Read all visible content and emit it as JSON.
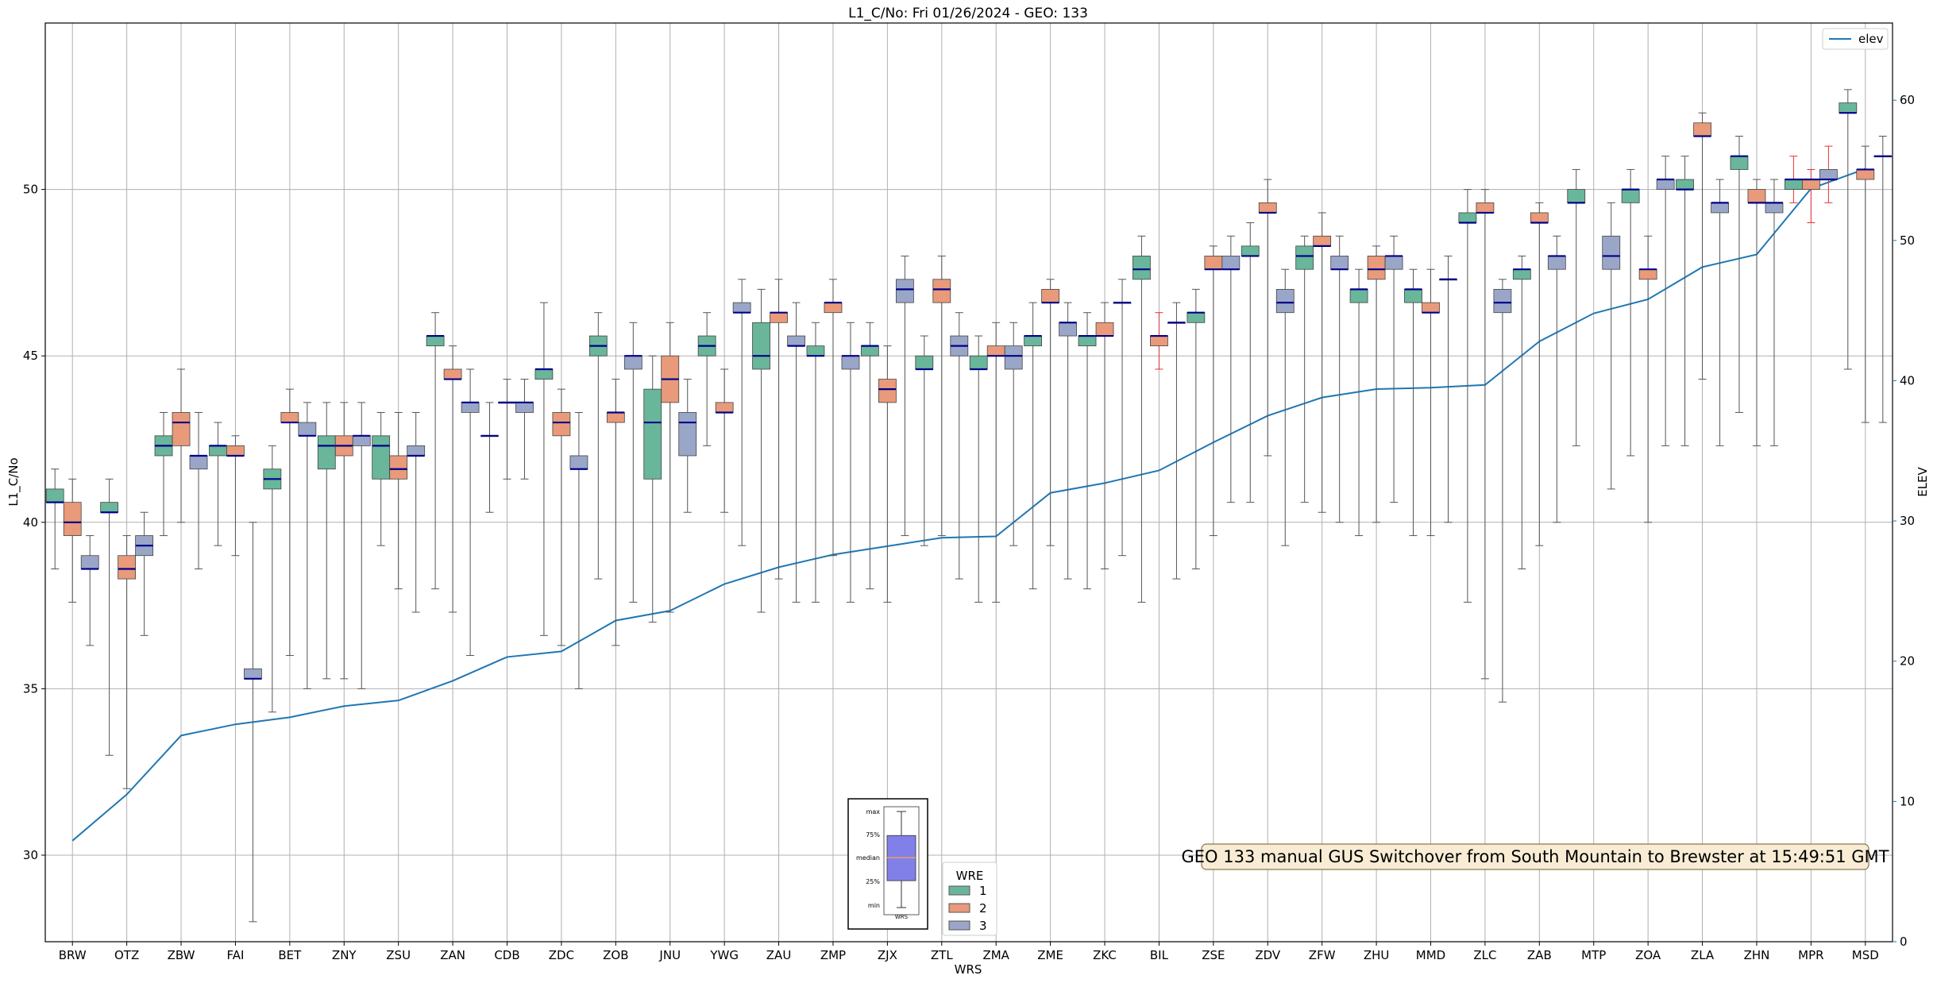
{
  "colors": {
    "wre1": "#69b69a",
    "wre2": "#e89a7a",
    "wre3": "#9aa6c8",
    "median": "#00008b",
    "elev": "#1f77b4",
    "grid": "#b0b0b0",
    "whisker": "#555555",
    "whisker_red": "#e83030",
    "annotation_bg": "#f8ecd4",
    "annotation_border": "#8a7650"
  },
  "chart_data": {
    "type": "box",
    "title": "L1_C/No: Fri 01/26/2024 - GEO: 133",
    "xlabel": "WRS",
    "ylabel": "L1_C/No",
    "y2label": "ELEV",
    "ylim": [
      27.4,
      55.0
    ],
    "y2lim": [
      0,
      65.5
    ],
    "yticks": [
      30,
      35,
      40,
      45,
      50
    ],
    "y2ticks": [
      0,
      10,
      20,
      30,
      40,
      50,
      60
    ],
    "grid": true,
    "categories": [
      "BRW",
      "OTZ",
      "ZBW",
      "FAI",
      "BET",
      "ZNY",
      "ZSU",
      "ZAN",
      "CDB",
      "ZDC",
      "ZOB",
      "JNU",
      "YWG",
      "ZAU",
      "ZMP",
      "ZJX",
      "ZTL",
      "ZMA",
      "ZME",
      "ZKC",
      "BIL",
      "ZSE",
      "ZDV",
      "ZFW",
      "ZHU",
      "MMD",
      "ZLC",
      "ZAB",
      "MTP",
      "ZOA",
      "ZLA",
      "ZHN",
      "MPR",
      "MSD"
    ],
    "boxes": [
      {
        "wrs": "BRW",
        "wre": 1,
        "min": 38.6,
        "q1": 40.6,
        "median": 40.6,
        "q3": 41.0,
        "max": 41.6
      },
      {
        "wrs": "BRW",
        "wre": 2,
        "min": 37.6,
        "q1": 39.6,
        "median": 40.0,
        "q3": 40.6,
        "max": 41.3
      },
      {
        "wrs": "BRW",
        "wre": 3,
        "min": 36.3,
        "q1": 38.6,
        "median": 38.6,
        "q3": 39.0,
        "max": 39.6
      },
      {
        "wrs": "OTZ",
        "wre": 1,
        "min": 33.0,
        "q1": 40.3,
        "median": 40.3,
        "q3": 40.6,
        "max": 41.3
      },
      {
        "wrs": "OTZ",
        "wre": 2,
        "min": 32.0,
        "q1": 38.3,
        "median": 38.6,
        "q3": 39.0,
        "max": 39.6
      },
      {
        "wrs": "OTZ",
        "wre": 3,
        "min": 36.6,
        "q1": 39.0,
        "median": 39.3,
        "q3": 39.6,
        "max": 40.3
      },
      {
        "wrs": "ZBW",
        "wre": 1,
        "min": 39.6,
        "q1": 42.0,
        "median": 42.3,
        "q3": 42.6,
        "max": 43.3
      },
      {
        "wrs": "ZBW",
        "wre": 2,
        "min": 40.0,
        "q1": 42.3,
        "median": 43.0,
        "q3": 43.3,
        "max": 44.6
      },
      {
        "wrs": "ZBW",
        "wre": 3,
        "min": 38.6,
        "q1": 41.6,
        "median": 42.0,
        "q3": 42.0,
        "max": 43.3
      },
      {
        "wrs": "FAI",
        "wre": 1,
        "min": 39.3,
        "q1": 42.0,
        "median": 42.3,
        "q3": 42.3,
        "max": 43.0
      },
      {
        "wrs": "FAI",
        "wre": 2,
        "min": 39.0,
        "q1": 42.0,
        "median": 42.0,
        "q3": 42.3,
        "max": 42.6
      },
      {
        "wrs": "FAI",
        "wre": 3,
        "min": 28.0,
        "q1": 35.3,
        "median": 35.3,
        "q3": 35.6,
        "max": 40.0
      },
      {
        "wrs": "BET",
        "wre": 1,
        "min": 34.3,
        "q1": 41.0,
        "median": 41.3,
        "q3": 41.6,
        "max": 42.3
      },
      {
        "wrs": "BET",
        "wre": 2,
        "min": 36.0,
        "q1": 43.0,
        "median": 43.0,
        "q3": 43.3,
        "max": 44.0
      },
      {
        "wrs": "BET",
        "wre": 3,
        "min": 35.0,
        "q1": 42.6,
        "median": 42.6,
        "q3": 43.0,
        "max": 43.6
      },
      {
        "wrs": "ZNY",
        "wre": 1,
        "min": 35.3,
        "q1": 41.6,
        "median": 42.3,
        "q3": 42.6,
        "max": 43.6
      },
      {
        "wrs": "ZNY",
        "wre": 2,
        "min": 35.3,
        "q1": 42.0,
        "median": 42.3,
        "q3": 42.6,
        "max": 43.6
      },
      {
        "wrs": "ZNY",
        "wre": 3,
        "min": 35.0,
        "q1": 42.3,
        "median": 42.6,
        "q3": 42.6,
        "max": 43.6
      },
      {
        "wrs": "ZSU",
        "wre": 1,
        "min": 39.3,
        "q1": 41.3,
        "median": 42.3,
        "q3": 42.6,
        "max": 43.3
      },
      {
        "wrs": "ZSU",
        "wre": 2,
        "min": 38.0,
        "q1": 41.3,
        "median": 41.6,
        "q3": 42.0,
        "max": 43.3
      },
      {
        "wrs": "ZSU",
        "wre": 3,
        "min": 37.3,
        "q1": 42.0,
        "median": 42.0,
        "q3": 42.3,
        "max": 43.3
      },
      {
        "wrs": "ZAN",
        "wre": 1,
        "min": 38.0,
        "q1": 45.3,
        "median": 45.6,
        "q3": 45.6,
        "max": 46.3
      },
      {
        "wrs": "ZAN",
        "wre": 2,
        "min": 37.3,
        "q1": 44.3,
        "median": 44.3,
        "q3": 44.6,
        "max": 45.3
      },
      {
        "wrs": "ZAN",
        "wre": 3,
        "min": 36.0,
        "q1": 43.3,
        "median": 43.6,
        "q3": 43.6,
        "max": 44.6
      },
      {
        "wrs": "CDB",
        "wre": 1,
        "min": 40.3,
        "q1": 42.6,
        "median": 42.6,
        "q3": 42.6,
        "max": 43.6
      },
      {
        "wrs": "CDB",
        "wre": 2,
        "min": 41.3,
        "q1": 43.6,
        "median": 43.6,
        "q3": 43.6,
        "max": 44.3
      },
      {
        "wrs": "CDB",
        "wre": 3,
        "min": 41.3,
        "q1": 43.3,
        "median": 43.6,
        "q3": 43.6,
        "max": 44.3
      },
      {
        "wrs": "ZDC",
        "wre": 1,
        "min": 36.6,
        "q1": 44.3,
        "median": 44.6,
        "q3": 44.6,
        "max": 46.6
      },
      {
        "wrs": "ZDC",
        "wre": 2,
        "min": 36.3,
        "q1": 42.6,
        "median": 43.0,
        "q3": 43.3,
        "max": 44.0
      },
      {
        "wrs": "ZDC",
        "wre": 3,
        "min": 35.0,
        "q1": 41.6,
        "median": 41.6,
        "q3": 42.0,
        "max": 43.3
      },
      {
        "wrs": "ZOB",
        "wre": 1,
        "min": 38.3,
        "q1": 45.0,
        "median": 45.3,
        "q3": 45.6,
        "max": 46.3
      },
      {
        "wrs": "ZOB",
        "wre": 2,
        "min": 36.3,
        "q1": 43.0,
        "median": 43.3,
        "q3": 43.3,
        "max": 44.3
      },
      {
        "wrs": "ZOB",
        "wre": 3,
        "min": 37.6,
        "q1": 44.6,
        "median": 45.0,
        "q3": 45.0,
        "max": 46.0
      },
      {
        "wrs": "JNU",
        "wre": 1,
        "min": 37.0,
        "q1": 41.3,
        "median": 43.0,
        "q3": 44.0,
        "max": 45.0
      },
      {
        "wrs": "JNU",
        "wre": 2,
        "min": 37.3,
        "q1": 43.6,
        "median": 44.3,
        "q3": 45.0,
        "max": 46.0
      },
      {
        "wrs": "JNU",
        "wre": 3,
        "min": 40.3,
        "q1": 42.0,
        "median": 43.0,
        "q3": 43.3,
        "max": 44.3
      },
      {
        "wrs": "YWG",
        "wre": 1,
        "min": 42.3,
        "q1": 45.0,
        "median": 45.3,
        "q3": 45.6,
        "max": 46.3
      },
      {
        "wrs": "YWG",
        "wre": 2,
        "min": 40.3,
        "q1": 43.3,
        "median": 43.3,
        "q3": 43.6,
        "max": 44.6
      },
      {
        "wrs": "YWG",
        "wre": 3,
        "min": 39.3,
        "q1": 46.3,
        "median": 46.3,
        "q3": 46.6,
        "max": 47.3
      },
      {
        "wrs": "ZAU",
        "wre": 1,
        "min": 37.3,
        "q1": 44.6,
        "median": 45.0,
        "q3": 46.0,
        "max": 47.0
      },
      {
        "wrs": "ZAU",
        "wre": 2,
        "min": 38.3,
        "q1": 46.0,
        "median": 46.3,
        "q3": 46.3,
        "max": 47.3
      },
      {
        "wrs": "ZAU",
        "wre": 3,
        "min": 37.6,
        "q1": 45.3,
        "median": 45.3,
        "q3": 45.6,
        "max": 46.6
      },
      {
        "wrs": "ZMP",
        "wre": 1,
        "min": 37.6,
        "q1": 45.0,
        "median": 45.0,
        "q3": 45.3,
        "max": 46.0
      },
      {
        "wrs": "ZMP",
        "wre": 2,
        "min": 39.0,
        "q1": 46.3,
        "median": 46.6,
        "q3": 46.6,
        "max": 47.3
      },
      {
        "wrs": "ZMP",
        "wre": 3,
        "min": 37.6,
        "q1": 44.6,
        "median": 45.0,
        "q3": 45.0,
        "max": 46.0
      },
      {
        "wrs": "ZJX",
        "wre": 1,
        "min": 38.0,
        "q1": 45.0,
        "median": 45.3,
        "q3": 45.3,
        "max": 46.0
      },
      {
        "wrs": "ZJX",
        "wre": 2,
        "min": 37.6,
        "q1": 43.6,
        "median": 44.0,
        "q3": 44.3,
        "max": 45.3
      },
      {
        "wrs": "ZJX",
        "wre": 3,
        "min": 39.6,
        "q1": 46.6,
        "median": 47.0,
        "q3": 47.3,
        "max": 48.0
      },
      {
        "wrs": "ZTL",
        "wre": 1,
        "min": 39.3,
        "q1": 44.6,
        "median": 44.6,
        "q3": 45.0,
        "max": 45.6
      },
      {
        "wrs": "ZTL",
        "wre": 2,
        "min": 39.6,
        "q1": 46.6,
        "median": 47.0,
        "q3": 47.3,
        "max": 48.0
      },
      {
        "wrs": "ZTL",
        "wre": 3,
        "min": 38.3,
        "q1": 45.0,
        "median": 45.3,
        "q3": 45.6,
        "max": 46.3
      },
      {
        "wrs": "ZMA",
        "wre": 1,
        "min": 37.6,
        "q1": 44.6,
        "median": 44.6,
        "q3": 45.0,
        "max": 45.6
      },
      {
        "wrs": "ZMA",
        "wre": 2,
        "min": 37.6,
        "q1": 45.0,
        "median": 45.0,
        "q3": 45.3,
        "max": 46.0
      },
      {
        "wrs": "ZMA",
        "wre": 3,
        "min": 39.3,
        "q1": 44.6,
        "median": 45.0,
        "q3": 45.3,
        "max": 46.0
      },
      {
        "wrs": "ZME",
        "wre": 1,
        "min": 38.0,
        "q1": 45.3,
        "median": 45.6,
        "q3": 45.6,
        "max": 46.6
      },
      {
        "wrs": "ZME",
        "wre": 2,
        "min": 39.3,
        "q1": 46.6,
        "median": 46.6,
        "q3": 47.0,
        "max": 47.3
      },
      {
        "wrs": "ZME",
        "wre": 3,
        "min": 38.3,
        "q1": 45.6,
        "median": 46.0,
        "q3": 46.0,
        "max": 46.6
      },
      {
        "wrs": "ZKC",
        "wre": 1,
        "min": 38.0,
        "q1": 45.3,
        "median": 45.6,
        "q3": 45.6,
        "max": 46.3
      },
      {
        "wrs": "ZKC",
        "wre": 2,
        "min": 38.6,
        "q1": 45.6,
        "median": 45.6,
        "q3": 46.0,
        "max": 46.6
      },
      {
        "wrs": "ZKC",
        "wre": 3,
        "min": 39.0,
        "q1": 46.6,
        "median": 46.6,
        "q3": 46.6,
        "max": 47.3
      },
      {
        "wrs": "BIL",
        "wre": 1,
        "min": 37.6,
        "q1": 47.3,
        "median": 47.6,
        "q3": 48.0,
        "max": 48.6
      },
      {
        "wrs": "BIL",
        "wre": 2,
        "min": 44.6,
        "q1": 45.3,
        "median": 45.6,
        "q3": 45.6,
        "max": 46.3,
        "red_whisker": true
      },
      {
        "wrs": "BIL",
        "wre": 3,
        "min": 38.3,
        "q1": 46.0,
        "median": 46.0,
        "q3": 46.0,
        "max": 46.6
      },
      {
        "wrs": "ZSE",
        "wre": 1,
        "min": 38.6,
        "q1": 46.0,
        "median": 46.3,
        "q3": 46.3,
        "max": 47.0
      },
      {
        "wrs": "ZSE",
        "wre": 2,
        "min": 39.6,
        "q1": 47.6,
        "median": 47.6,
        "q3": 48.0,
        "max": 48.3
      },
      {
        "wrs": "ZSE",
        "wre": 3,
        "min": 40.6,
        "q1": 47.6,
        "median": 47.6,
        "q3": 48.0,
        "max": 48.6
      },
      {
        "wrs": "ZDV",
        "wre": 1,
        "min": 40.6,
        "q1": 48.0,
        "median": 48.0,
        "q3": 48.3,
        "max": 49.0
      },
      {
        "wrs": "ZDV",
        "wre": 2,
        "min": 42.0,
        "q1": 49.3,
        "median": 49.3,
        "q3": 49.6,
        "max": 50.3
      },
      {
        "wrs": "ZDV",
        "wre": 3,
        "min": 39.3,
        "q1": 46.3,
        "median": 46.6,
        "q3": 47.0,
        "max": 47.6
      },
      {
        "wrs": "ZFW",
        "wre": 1,
        "min": 40.6,
        "q1": 47.6,
        "median": 48.0,
        "q3": 48.3,
        "max": 48.6
      },
      {
        "wrs": "ZFW",
        "wre": 2,
        "min": 40.3,
        "q1": 48.3,
        "median": 48.3,
        "q3": 48.6,
        "max": 49.3
      },
      {
        "wrs": "ZFW",
        "wre": 3,
        "min": 40.0,
        "q1": 47.6,
        "median": 47.6,
        "q3": 48.0,
        "max": 48.6
      },
      {
        "wrs": "ZHU",
        "wre": 1,
        "min": 39.6,
        "q1": 46.6,
        "median": 47.0,
        "q3": 47.0,
        "max": 47.6
      },
      {
        "wrs": "ZHU",
        "wre": 2,
        "min": 40.0,
        "q1": 47.3,
        "median": 47.6,
        "q3": 48.0,
        "max": 48.3
      },
      {
        "wrs": "ZHU",
        "wre": 3,
        "min": 40.6,
        "q1": 47.6,
        "median": 48.0,
        "q3": 48.0,
        "max": 48.6
      },
      {
        "wrs": "MMD",
        "wre": 1,
        "min": 39.6,
        "q1": 46.6,
        "median": 47.0,
        "q3": 47.0,
        "max": 47.6
      },
      {
        "wrs": "MMD",
        "wre": 2,
        "min": 39.6,
        "q1": 46.3,
        "median": 46.3,
        "q3": 46.6,
        "max": 47.6
      },
      {
        "wrs": "MMD",
        "wre": 3,
        "min": 40.0,
        "q1": 47.3,
        "median": 47.3,
        "q3": 47.3,
        "max": 48.0
      },
      {
        "wrs": "ZLC",
        "wre": 1,
        "min": 37.6,
        "q1": 49.0,
        "median": 49.0,
        "q3": 49.3,
        "max": 50.0
      },
      {
        "wrs": "ZLC",
        "wre": 2,
        "min": 35.3,
        "q1": 49.3,
        "median": 49.3,
        "q3": 49.6,
        "max": 50.0
      },
      {
        "wrs": "ZLC",
        "wre": 3,
        "min": 34.6,
        "q1": 46.3,
        "median": 46.6,
        "q3": 47.0,
        "max": 47.3
      },
      {
        "wrs": "ZAB",
        "wre": 1,
        "min": 38.6,
        "q1": 47.3,
        "median": 47.6,
        "q3": 47.6,
        "max": 48.0
      },
      {
        "wrs": "ZAB",
        "wre": 2,
        "min": 39.3,
        "q1": 49.0,
        "median": 49.0,
        "q3": 49.3,
        "max": 49.6
      },
      {
        "wrs": "ZAB",
        "wre": 3,
        "min": 40.0,
        "q1": 47.6,
        "median": 48.0,
        "q3": 48.0,
        "max": 48.6
      },
      {
        "wrs": "MTP",
        "wre": 1,
        "min": 42.3,
        "q1": 49.6,
        "median": 49.6,
        "q3": 50.0,
        "max": 50.6
      },
      {
        "wrs": "MTP",
        "wre": 3,
        "min": 41.0,
        "q1": 47.6,
        "median": 48.0,
        "q3": 48.6,
        "max": 49.6
      },
      {
        "wrs": "ZOA",
        "wre": 1,
        "min": 42.0,
        "q1": 49.6,
        "median": 50.0,
        "q3": 50.0,
        "max": 50.6
      },
      {
        "wrs": "ZOA",
        "wre": 2,
        "min": 40.0,
        "q1": 47.3,
        "median": 47.6,
        "q3": 47.6,
        "max": 48.6
      },
      {
        "wrs": "ZOA",
        "wre": 3,
        "min": 42.3,
        "q1": 50.0,
        "median": 50.3,
        "q3": 50.3,
        "max": 51.0
      },
      {
        "wrs": "ZLA",
        "wre": 1,
        "min": 42.3,
        "q1": 50.0,
        "median": 50.0,
        "q3": 50.3,
        "max": 51.0
      },
      {
        "wrs": "ZLA",
        "wre": 2,
        "min": 44.3,
        "q1": 51.6,
        "median": 51.6,
        "q3": 52.0,
        "max": 52.3
      },
      {
        "wrs": "ZLA",
        "wre": 3,
        "min": 42.3,
        "q1": 49.3,
        "median": 49.6,
        "q3": 49.6,
        "max": 50.3
      },
      {
        "wrs": "ZHN",
        "wre": 1,
        "min": 43.3,
        "q1": 50.6,
        "median": 51.0,
        "q3": 51.0,
        "max": 51.6
      },
      {
        "wrs": "ZHN",
        "wre": 2,
        "min": 42.3,
        "q1": 49.6,
        "median": 49.6,
        "q3": 50.0,
        "max": 50.3
      },
      {
        "wrs": "ZHN",
        "wre": 3,
        "min": 42.3,
        "q1": 49.3,
        "median": 49.6,
        "q3": 49.6,
        "max": 50.3
      },
      {
        "wrs": "MPR",
        "wre": 1,
        "min": 49.6,
        "q1": 50.0,
        "median": 50.3,
        "q3": 50.3,
        "max": 51.0,
        "red_whisker": true
      },
      {
        "wrs": "MPR",
        "wre": 2,
        "min": 49.0,
        "q1": 50.0,
        "median": 50.3,
        "q3": 50.3,
        "max": 50.6,
        "red_whisker": true
      },
      {
        "wrs": "MPR",
        "wre": 3,
        "min": 49.6,
        "q1": 50.3,
        "median": 50.3,
        "q3": 50.6,
        "max": 51.3,
        "red_whisker": true
      },
      {
        "wrs": "MSD",
        "wre": 1,
        "min": 44.6,
        "q1": 52.3,
        "median": 52.3,
        "q3": 52.6,
        "max": 53.0
      },
      {
        "wrs": "MSD",
        "wre": 2,
        "min": 43.0,
        "q1": 50.3,
        "median": 50.6,
        "q3": 50.6,
        "max": 51.3
      },
      {
        "wrs": "MSD",
        "wre": 3,
        "min": 43.0,
        "q1": 51.0,
        "median": 51.0,
        "q3": 51.0,
        "max": 51.6
      }
    ],
    "elev_series": {
      "name": "elev",
      "axis": "y2",
      "values": [
        7.2,
        10.5,
        14.7,
        15.5,
        16.0,
        16.8,
        17.2,
        18.6,
        20.3,
        20.7,
        22.9,
        23.6,
        25.5,
        26.7,
        27.6,
        28.2,
        28.8,
        28.9,
        32.0,
        32.7,
        33.6,
        35.6,
        37.5,
        38.8,
        39.4,
        39.5,
        39.7,
        42.8,
        44.8,
        45.8,
        48.1,
        49.0,
        53.7,
        55.1
      ]
    },
    "legend_wre": {
      "title": "WRE",
      "entries": [
        "1",
        "2",
        "3"
      ]
    },
    "legend_elev": {
      "label": "elev",
      "placement": "top-right"
    },
    "annotation": "GEO 133 manual GUS Switchover from South Mountain to Brewster at 15:49:51 GMT",
    "inset_key": {
      "labels": [
        "max",
        "75%",
        "median",
        "25%",
        "min"
      ],
      "xlabel": "WRS",
      "sample": {
        "min": 0.0,
        "q1": 0.28,
        "median": 0.52,
        "q3": 0.75,
        "max": 1.0
      }
    }
  }
}
